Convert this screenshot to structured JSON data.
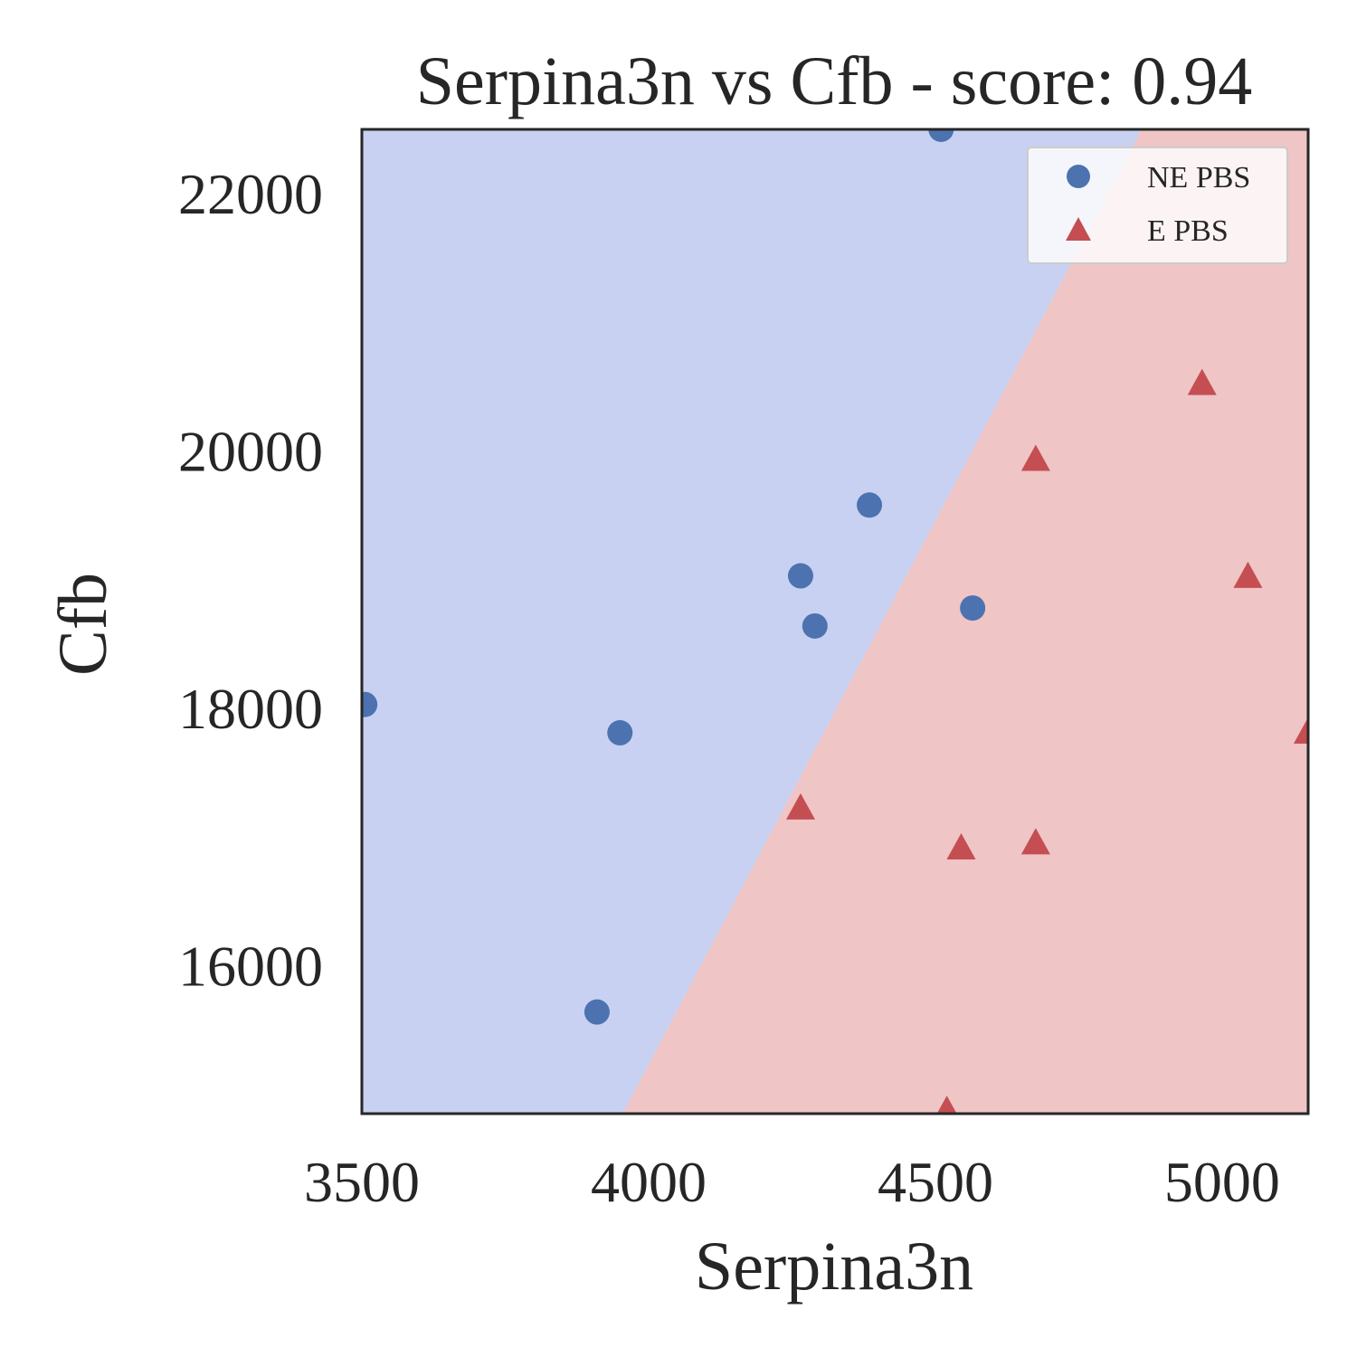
{
  "chart_data": {
    "type": "scatter",
    "title": "Serpina3n vs Cfb - score: 0.94",
    "xlabel": "Serpina3n",
    "ylabel": "Cfb",
    "xlim": [
      3500,
      5150
    ],
    "ylim": [
      14850,
      22500
    ],
    "x_ticks": [
      "3500",
      "4000",
      "4500",
      "5000"
    ],
    "y_ticks": [
      "16000",
      "18000",
      "20000",
      "22000"
    ],
    "grid": false,
    "legend_position": "top-right",
    "decision_boundary": {
      "points": [
        [
          3955,
          14850
        ],
        [
          4860,
          22500
        ]
      ],
      "left_color": "#c8d1f1",
      "right_color": "#efc5c5"
    },
    "series": [
      {
        "name": "NE PBS",
        "marker": "circle",
        "color": "#4c72b0",
        "points": [
          [
            4510,
            22500
          ],
          [
            4385,
            19580
          ],
          [
            4265,
            19030
          ],
          [
            4290,
            18640
          ],
          [
            4565,
            18780
          ],
          [
            3505,
            18030
          ],
          [
            3950,
            17810
          ],
          [
            3910,
            15640
          ]
        ]
      },
      {
        "name": "E PBS",
        "marker": "triangle",
        "color": "#c44e52",
        "points": [
          [
            4965,
            20520
          ],
          [
            4675,
            19930
          ],
          [
            5045,
            19020
          ],
          [
            5150,
            17810
          ],
          [
            4265,
            17220
          ],
          [
            4545,
            16910
          ],
          [
            4675,
            16950
          ],
          [
            4520,
            14870
          ]
        ]
      }
    ]
  }
}
